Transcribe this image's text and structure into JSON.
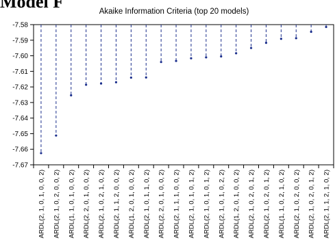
{
  "page": {
    "heading": "Model F"
  },
  "chart_data": {
    "type": "line",
    "title": "Akaike Information Criteria (top 20 models)",
    "xlabel": "",
    "ylabel": "",
    "ylim": [
      -7.67,
      -7.58
    ],
    "yticks": [
      -7.58,
      -7.59,
      -7.6,
      -7.61,
      -7.62,
      -7.63,
      -7.64,
      -7.65,
      -7.66,
      -7.67
    ],
    "grid": false,
    "categories": [
      "ARDL(2, 1, 0, 1, 0, 0, 2)",
      "ARDL(2, 1, 0, 2, 0, 0, 2)",
      "ARDL(1, 1, 0, 1, 0, 0, 2)",
      "ARDL(2, 2, 0, 1, 0, 0, 2)",
      "ARDL(2, 1, 0, 2, 1, 0, 2)",
      "ARDL(2, 1, 1, 2, 0, 0, 2)",
      "ARDL(1, 2, 0, 1, 0, 0, 2)",
      "ARDL(2, 1, 0, 1, 1, 0, 2)",
      "ARDL(2, 2, 0, 1, 0, 0, 2)",
      "ARDL(2, 1, 1, 1, 0, 0, 2)",
      "ARDL(2, 1, 0, 1, 0, 1, 2)",
      "ARDL(2, 1, 0, 1, 0, 1, 2)",
      "ARDL(2, 1, 0, 1, 0, 2, 2)",
      "ARDL(1, 2, 0, 1, 0, 0, 2)",
      "ARDL(2, 1, 0, 2, 0, 1, 2)",
      "ARDL(2, 1, 0, 2, 0, 1, 2)",
      "ARDL(1, 1, 0, 2, 1, 0, 2)",
      "ARDL(2, 1, 0, 2, 0, 0, 2)",
      "ARDL(2, 1, 0, 2, 0, 1, 2)",
      "ARDL(2, 1, 1, 2, 1, 0, 2)"
    ],
    "values": [
      -7.6625,
      -7.6512,
      -7.6254,
      -7.6186,
      -7.6178,
      -7.617,
      -7.614,
      -7.6139,
      -7.604,
      -7.6033,
      -7.6016,
      -7.601,
      -7.6004,
      -7.5984,
      -7.595,
      -7.5917,
      -7.5891,
      -7.5887,
      -7.5846,
      -7.5815
    ],
    "series_color": "#1a2e8c"
  }
}
